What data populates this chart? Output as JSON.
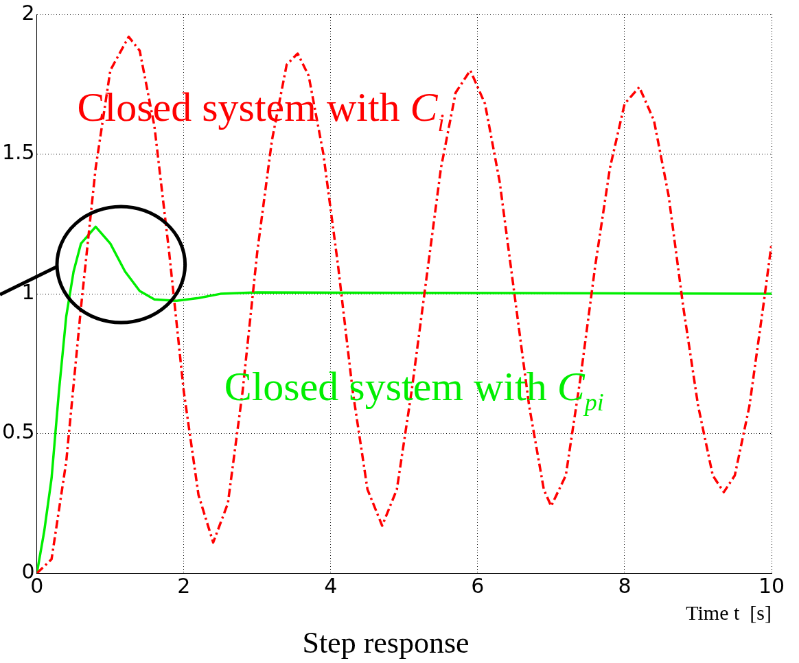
{
  "chart_data": {
    "type": "line",
    "title": "Step response",
    "xlabel": "Time t  [s]",
    "xlim": [
      0,
      10
    ],
    "xticks": [
      0,
      2,
      4,
      6,
      8,
      10
    ],
    "ylim": [
      0,
      2
    ],
    "yticks": [
      0,
      0.5,
      1,
      1.5,
      2
    ],
    "grid": true,
    "legend": false,
    "marker": "none",
    "series": [
      {
        "name": "Closed system with C$_{i}$",
        "color": "#ff0000",
        "line_style": "dashed",
        "x": [
          0,
          0.2,
          0.4,
          0.6,
          0.8,
          1.0,
          1.25,
          1.4,
          1.6,
          1.8,
          2.0,
          2.2,
          2.4,
          2.6,
          2.8,
          3.0,
          3.2,
          3.4,
          3.55,
          3.7,
          3.9,
          4.1,
          4.3,
          4.5,
          4.7,
          4.9,
          5.1,
          5.3,
          5.5,
          5.7,
          5.9,
          6.1,
          6.3,
          6.5,
          6.7,
          6.9,
          7.0,
          7.2,
          7.4,
          7.6,
          7.8,
          8.0,
          8.2,
          8.4,
          8.6,
          8.8,
          9.0,
          9.2,
          9.35,
          9.5,
          9.7,
          9.9,
          10
        ],
        "values": [
          0,
          0.05,
          0.4,
          0.95,
          1.45,
          1.8,
          1.92,
          1.87,
          1.6,
          1.15,
          0.65,
          0.28,
          0.11,
          0.25,
          0.65,
          1.15,
          1.55,
          1.82,
          1.86,
          1.78,
          1.5,
          1.1,
          0.65,
          0.3,
          0.17,
          0.3,
          0.65,
          1.05,
          1.45,
          1.72,
          1.8,
          1.68,
          1.4,
          1.0,
          0.6,
          0.3,
          0.24,
          0.35,
          0.7,
          1.1,
          1.45,
          1.68,
          1.74,
          1.62,
          1.35,
          0.95,
          0.6,
          0.35,
          0.29,
          0.35,
          0.6,
          0.98,
          1.18
        ]
      },
      {
        "name": "Closed system with C$_{pi}$",
        "color": "#00ee00",
        "line_style": "solid",
        "x": [
          0,
          0.1,
          0.2,
          0.3,
          0.4,
          0.5,
          0.6,
          0.8,
          1.0,
          1.2,
          1.4,
          1.6,
          1.9,
          2.2,
          2.5,
          3,
          10
        ],
        "values": [
          0,
          0.15,
          0.34,
          0.65,
          0.92,
          1.08,
          1.18,
          1.24,
          1.18,
          1.08,
          1.01,
          0.98,
          0.975,
          0.985,
          1.0,
          1.005,
          1.0
        ]
      }
    ]
  }
}
